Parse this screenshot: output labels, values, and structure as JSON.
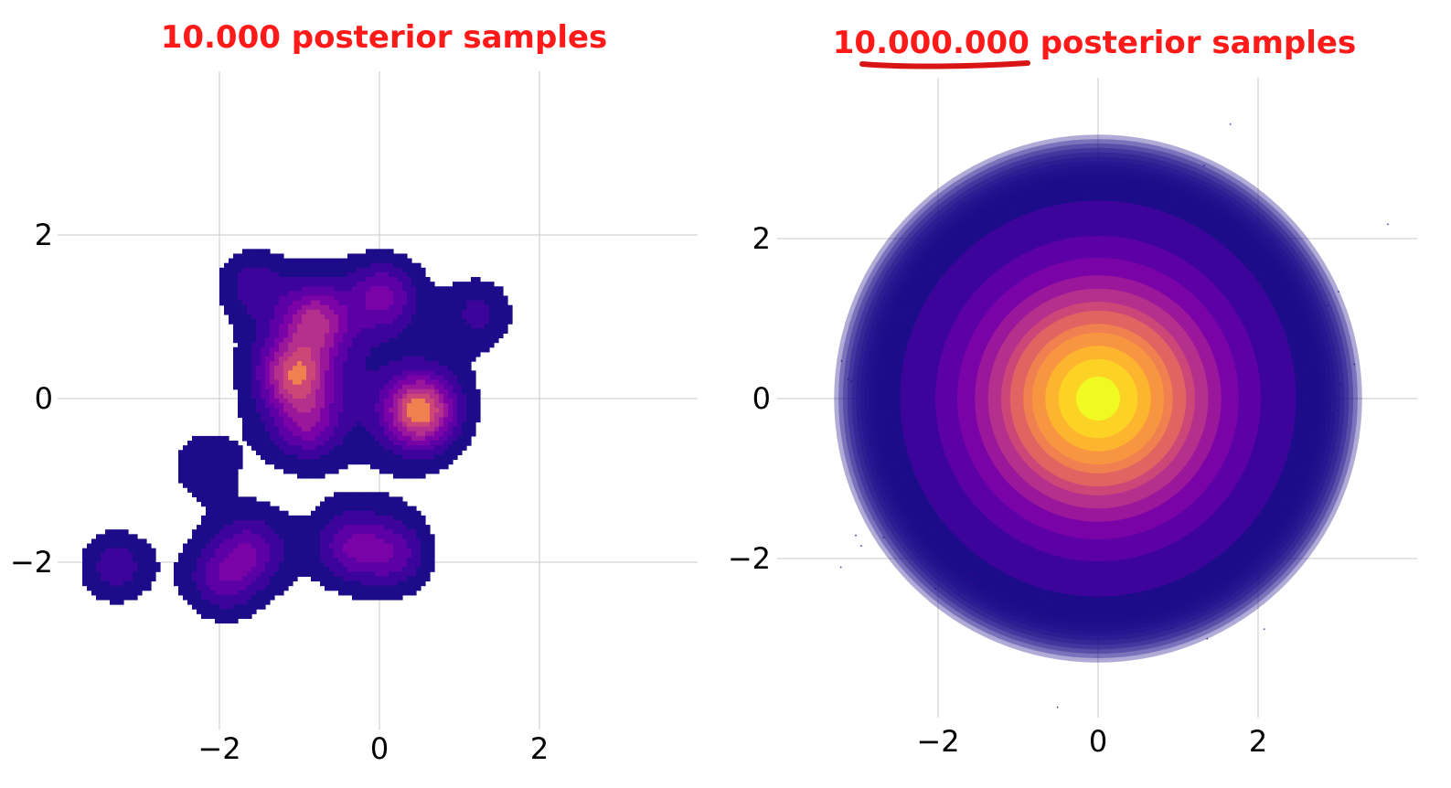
{
  "chart_data": [
    {
      "type": "contour",
      "title": "10.000 posterior samples",
      "xlabel": "",
      "ylabel": "",
      "xlim": [
        -4,
        4
      ],
      "ylim": [
        -4,
        4
      ],
      "x_ticks": [
        -2,
        0,
        2
      ],
      "y_ticks": [
        -2,
        0,
        2
      ],
      "x_tick_labels": [
        "−2",
        "0",
        "2"
      ],
      "y_tick_labels": [
        "−2",
        "0",
        "2"
      ],
      "grid": true,
      "colormap": "plasma",
      "levels": 8,
      "estimated_modes": [
        {
          "x": 0.5,
          "y": -0.15,
          "w": 1.0
        },
        {
          "x": -1.05,
          "y": 0.3,
          "w": 0.75
        },
        {
          "x": -0.8,
          "y": 0.95,
          "w": 0.6
        },
        {
          "x": 0.05,
          "y": 1.25,
          "w": 0.45
        },
        {
          "x": -0.9,
          "y": -0.3,
          "w": 0.45
        },
        {
          "x": -0.35,
          "y": -1.8,
          "w": 0.4
        },
        {
          "x": 0.2,
          "y": -1.9,
          "w": 0.35
        },
        {
          "x": -1.6,
          "y": -1.85,
          "w": 0.35
        },
        {
          "x": -1.95,
          "y": -2.2,
          "w": 0.35
        },
        {
          "x": -3.3,
          "y": -2.05,
          "w": 0.3
        },
        {
          "x": -2.2,
          "y": -0.8,
          "w": 0.2
        },
        {
          "x": 1.25,
          "y": 1.05,
          "w": 0.25
        },
        {
          "x": -1.6,
          "y": 1.4,
          "w": 0.25
        }
      ]
    },
    {
      "type": "scatter",
      "title": "10.000.000 posterior samples",
      "title_highlight": "10.000.000",
      "title_rest": " posterior samples",
      "xlabel": "",
      "ylabel": "",
      "xlim": [
        -4,
        4
      ],
      "ylim": [
        -4,
        4
      ],
      "x_ticks": [
        -2,
        0,
        2
      ],
      "y_ticks": [
        -2,
        0,
        2
      ],
      "x_tick_labels": [
        "−2",
        "0",
        "2"
      ],
      "y_tick_labels": [
        "−2",
        "0",
        "2"
      ],
      "grid": true,
      "colormap": "plasma",
      "distribution": "standard normal",
      "center": [
        0,
        0
      ],
      "std": 1
    }
  ],
  "colors": {
    "title": "#ff1a1a",
    "underline": "#d91414",
    "grid": "#c8c8c8",
    "plasma": [
      "#1d0c8a",
      "#3d049b",
      "#5b01a5",
      "#7a03a8",
      "#9a179b",
      "#b52f8c",
      "#cc4778",
      "#e16462",
      "#f0804f",
      "#f89540",
      "#fdb42f",
      "#fcd225",
      "#f0f921"
    ]
  }
}
